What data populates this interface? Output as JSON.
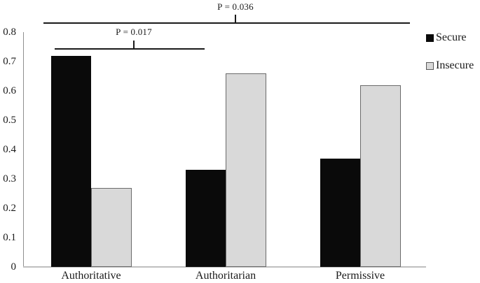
{
  "chart_data": {
    "type": "bar",
    "title": "",
    "xlabel": "",
    "ylabel": "",
    "categories": [
      "Authoritative",
      "Authoritarian",
      "Permissive"
    ],
    "series": [
      {
        "name": "Secure",
        "color": "#0a0a0a",
        "values": [
          0.72,
          0.33,
          0.37
        ]
      },
      {
        "name": "Insecure",
        "color": "#d9d9d9",
        "border_color": "#6b6b6b",
        "values": [
          0.27,
          0.66,
          0.62
        ]
      }
    ],
    "ylim": [
      0,
      0.8
    ],
    "yticks": [
      0,
      0.1,
      0.2,
      0.3,
      0.4,
      0.5,
      0.6,
      0.7,
      0.8
    ],
    "ytick_labels": [
      "0",
      "0.1",
      "0.2",
      "0.3",
      "0.4",
      "0.5",
      "0.6",
      "0.7",
      "0.8"
    ],
    "grid": false,
    "legend_position": "top-right",
    "annotations": [
      {
        "type": "significance-bracket",
        "label": "P = 0.036",
        "compares": [
          "Authoritative",
          "Permissive"
        ]
      },
      {
        "type": "significance-bracket",
        "label": "P = 0.017",
        "compares": [
          "Authoritative",
          "Authoritarian"
        ]
      }
    ]
  }
}
